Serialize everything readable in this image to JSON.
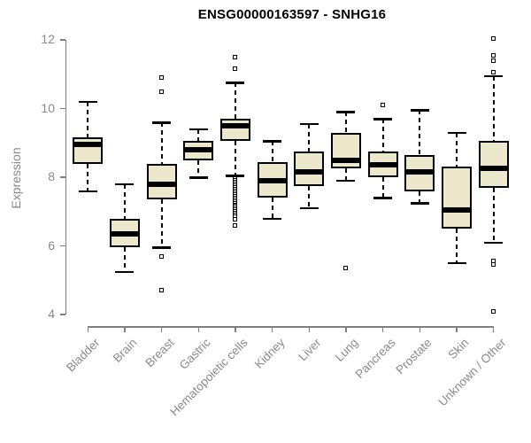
{
  "chart_data": {
    "type": "boxplot",
    "title": "ENSG00000163597 - SNHG16",
    "ylabel": "Expression",
    "xlabel": "",
    "ylim": [
      4,
      12
    ],
    "yticks": [
      4,
      6,
      8,
      10,
      12
    ],
    "grid": false,
    "legend": "none",
    "categories": [
      "Bladder",
      "Brain",
      "Breast",
      "Gastric",
      "Hematopoietic cells",
      "Kidney",
      "Liver",
      "Lung",
      "Pancreas",
      "Prostate",
      "Skin",
      "Unknown / Other"
    ],
    "series": [
      {
        "name": "Bladder",
        "low": 7.6,
        "q1": 8.4,
        "median": 8.95,
        "q3": 9.15,
        "high": 10.2,
        "outliers": []
      },
      {
        "name": "Brain",
        "low": 5.25,
        "q1": 5.95,
        "median": 6.35,
        "q3": 6.8,
        "high": 7.8,
        "outliers": []
      },
      {
        "name": "Breast",
        "low": 5.95,
        "q1": 7.35,
        "median": 7.8,
        "q3": 8.4,
        "high": 9.6,
        "outliers": [
          10.9,
          10.5,
          5.7,
          4.7
        ]
      },
      {
        "name": "Gastric",
        "low": 8.0,
        "q1": 8.5,
        "median": 8.8,
        "q3": 9.05,
        "high": 9.4,
        "outliers": []
      },
      {
        "name": "Hematopoietic cells",
        "low": 8.05,
        "q1": 9.05,
        "median": 9.5,
        "q3": 9.7,
        "high": 10.75,
        "outliers": [
          11.5,
          11.15,
          7.95,
          7.9,
          7.85,
          7.8,
          7.75,
          7.7,
          7.65,
          7.6,
          7.55,
          7.5,
          7.45,
          7.4,
          7.35,
          7.3,
          7.25,
          7.2,
          7.15,
          7.1,
          7.05,
          7.0,
          6.95,
          6.9,
          6.85,
          6.78,
          6.6
        ]
      },
      {
        "name": "Kidney",
        "low": 6.8,
        "q1": 7.4,
        "median": 7.9,
        "q3": 8.45,
        "high": 9.05,
        "outliers": []
      },
      {
        "name": "Liver",
        "low": 7.1,
        "q1": 7.75,
        "median": 8.15,
        "q3": 8.75,
        "high": 9.55,
        "outliers": []
      },
      {
        "name": "Lung",
        "low": 7.9,
        "q1": 8.25,
        "median": 8.5,
        "q3": 9.3,
        "high": 9.9,
        "outliers": [
          5.35
        ]
      },
      {
        "name": "Pancreas",
        "low": 7.4,
        "q1": 8.0,
        "median": 8.35,
        "q3": 8.75,
        "high": 9.7,
        "outliers": [
          10.1
        ]
      },
      {
        "name": "Prostate",
        "low": 7.25,
        "q1": 7.6,
        "median": 8.15,
        "q3": 8.65,
        "high": 9.95,
        "outliers": []
      },
      {
        "name": "Skin",
        "low": 5.5,
        "q1": 6.5,
        "median": 7.05,
        "q3": 8.3,
        "high": 9.3,
        "outliers": []
      },
      {
        "name": "Unknown / Other",
        "low": 6.1,
        "q1": 7.7,
        "median": 8.25,
        "q3": 9.05,
        "high": 10.95,
        "outliers": [
          12.05,
          11.55,
          11.4,
          11.05,
          5.55,
          5.45,
          4.1
        ]
      }
    ],
    "colors": {
      "box_fill": "#EDE7CB",
      "box_border": "#000000",
      "median": "#000000",
      "whisker": "#000000",
      "outlier_fill": "#ffffff",
      "axis": "#7f7f7f",
      "tick_label": "#8a8a8a",
      "title": "#000000"
    }
  }
}
